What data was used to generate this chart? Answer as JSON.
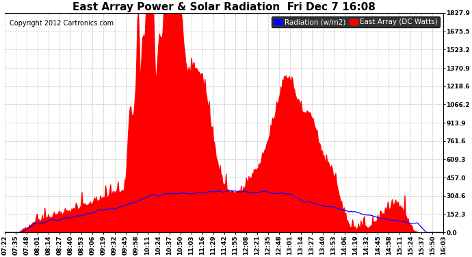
{
  "title": "East Array Power & Solar Radiation  Fri Dec 7 16:08",
  "copyright": "Copyright 2012 Cartronics.com",
  "legend_radiation": "Radiation (w/m2)",
  "legend_east": "East Array (DC Watts)",
  "radiation_color": "#0000ff",
  "east_color": "#ff0000",
  "bg_color": "#ffffff",
  "plot_bg": "#ffffff",
  "grid_color": "#c0c0c0",
  "ymin": 0.0,
  "ymax": 1827.9,
  "yticks": [
    0.0,
    152.3,
    304.6,
    457.0,
    609.3,
    761.6,
    913.9,
    1066.2,
    1218.6,
    1370.9,
    1523.2,
    1675.5,
    1827.9
  ],
  "title_fontsize": 11,
  "copyright_fontsize": 7,
  "tick_fontsize": 6.5,
  "legend_fontsize": 7.5,
  "xtick_labels": [
    "07:22",
    "07:35",
    "07:48",
    "08:01",
    "08:14",
    "08:27",
    "08:40",
    "08:53",
    "09:06",
    "09:19",
    "09:32",
    "09:45",
    "09:58",
    "10:11",
    "10:24",
    "10:37",
    "10:50",
    "11:03",
    "11:16",
    "11:29",
    "11:42",
    "11:55",
    "12:08",
    "12:21",
    "12:35",
    "12:48",
    "13:01",
    "13:14",
    "13:27",
    "13:40",
    "13:53",
    "14:06",
    "14:19",
    "14:32",
    "14:45",
    "14:58",
    "15:11",
    "15:24",
    "15:37",
    "15:50",
    "16:03"
  ]
}
